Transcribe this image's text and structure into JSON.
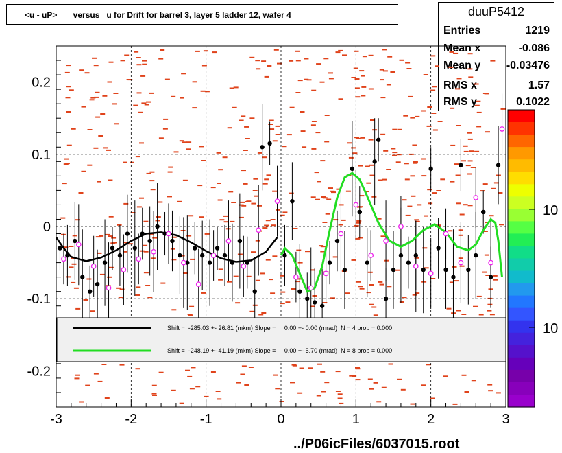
{
  "title": "<u - uP>       versus   u for Drift for barrel 3, layer 5 ladder 12, wafer 4",
  "stats": {
    "name": "duuP5412",
    "rows": [
      {
        "label": "Entries",
        "value": "1219"
      },
      {
        "label": "Mean x",
        "value": "-0.086"
      },
      {
        "label": "Mean y",
        "value": "-0.03476"
      },
      {
        "label": "RMS x",
        "value": "1.57"
      },
      {
        "label": "RMS y",
        "value": "0.1022"
      }
    ]
  },
  "legend": {
    "entries": [
      {
        "text": "Shift =  -285.03 +- 26.81 (mkm) Slope =     0.00 +- 0.00 (mrad)  N = 4 prob = 0.000",
        "color": "#000000"
      },
      {
        "text": "Shift =  -248.19 +- 41.19 (mkm) Slope =     0.00 +- 5.70 (mrad)  N = 8 prob = 0.000",
        "color": "#22dd22"
      }
    ]
  },
  "footer": "../P06icFiles/6037015.root",
  "palette_labels": [
    "10",
    "10"
  ],
  "chart_data": {
    "type": "scatter",
    "xlim": [
      -3,
      3
    ],
    "ylim": [
      -0.25,
      0.25
    ],
    "xticks": [
      "-3",
      "-2",
      "-1",
      "0",
      "1",
      "2",
      "3"
    ],
    "yticks": [
      "-0.2",
      "-0.1",
      "0",
      "0.1",
      "0.2"
    ],
    "grid": true,
    "colors": {
      "heat": "#e0431b",
      "profile": "#000000",
      "profile2": "#ee22ee",
      "fit1": "#000000",
      "fit2": "#22dd22"
    },
    "profile_black": [
      {
        "x": -2.95,
        "y": -0.03
      },
      {
        "x": -2.85,
        "y": -0.04
      },
      {
        "x": -2.75,
        "y": -0.02
      },
      {
        "x": -2.65,
        "y": -0.07
      },
      {
        "x": -2.55,
        "y": -0.09
      },
      {
        "x": -2.45,
        "y": -0.08
      },
      {
        "x": -2.35,
        "y": -0.05
      },
      {
        "x": -2.25,
        "y": -0.03
      },
      {
        "x": -2.15,
        "y": -0.04
      },
      {
        "x": -2.05,
        "y": -0.01
      },
      {
        "x": -1.95,
        "y": -0.03
      },
      {
        "x": -1.85,
        "y": -0.01
      },
      {
        "x": -1.75,
        "y": -0.02
      },
      {
        "x": -1.65,
        "y": 0.0
      },
      {
        "x": -1.55,
        "y": -0.01
      },
      {
        "x": -1.45,
        "y": -0.02
      },
      {
        "x": -1.35,
        "y": -0.04
      },
      {
        "x": -1.25,
        "y": -0.05
      },
      {
        "x": -1.15,
        "y": -0.03
      },
      {
        "x": -1.05,
        "y": -0.04
      },
      {
        "x": -0.95,
        "y": -0.05
      },
      {
        "x": -0.85,
        "y": -0.03
      },
      {
        "x": -0.75,
        "y": -0.04
      },
      {
        "x": -0.65,
        "y": -0.05
      },
      {
        "x": -0.55,
        "y": -0.02
      },
      {
        "x": -0.45,
        "y": -0.05
      },
      {
        "x": -0.35,
        "y": -0.09
      },
      {
        "x": -0.25,
        "y": 0.11
      },
      {
        "x": -0.15,
        "y": 0.115
      },
      {
        "x": 0.05,
        "y": -0.04
      },
      {
        "x": 0.15,
        "y": 0.035
      },
      {
        "x": 0.25,
        "y": -0.09
      },
      {
        "x": 0.35,
        "y": -0.1
      },
      {
        "x": 0.45,
        "y": -0.105
      },
      {
        "x": 0.55,
        "y": -0.11
      },
      {
        "x": 0.65,
        "y": -0.05
      },
      {
        "x": 0.75,
        "y": -0.02
      },
      {
        "x": 0.85,
        "y": -0.06
      },
      {
        "x": 0.95,
        "y": 0.08
      },
      {
        "x": 1.05,
        "y": 0.02
      },
      {
        "x": 1.15,
        "y": -0.05
      },
      {
        "x": 1.25,
        "y": 0.09
      },
      {
        "x": 1.3,
        "y": 0.12
      },
      {
        "x": 1.4,
        "y": -0.1
      },
      {
        "x": 1.5,
        "y": -0.06
      },
      {
        "x": 1.6,
        "y": -0.04
      },
      {
        "x": 1.7,
        "y": -0.05
      },
      {
        "x": 1.8,
        "y": -0.04
      },
      {
        "x": 1.9,
        "y": -0.06
      },
      {
        "x": 2.0,
        "y": 0.08
      },
      {
        "x": 2.1,
        "y": -0.03
      },
      {
        "x": 2.2,
        "y": -0.06
      },
      {
        "x": 2.3,
        "y": -0.07
      },
      {
        "x": 2.4,
        "y": 0.085
      },
      {
        "x": 2.5,
        "y": -0.06
      },
      {
        "x": 2.6,
        "y": -0.04
      },
      {
        "x": 2.7,
        "y": 0.02
      },
      {
        "x": 2.8,
        "y": -0.07
      },
      {
        "x": 2.9,
        "y": 0.085
      }
    ],
    "profile_magenta": [
      {
        "x": -2.9,
        "y": -0.045
      },
      {
        "x": -2.7,
        "y": -0.025
      },
      {
        "x": -2.5,
        "y": -0.055
      },
      {
        "x": -2.3,
        "y": -0.085
      },
      {
        "x": -2.1,
        "y": -0.06
      },
      {
        "x": -1.9,
        "y": -0.045
      },
      {
        "x": -1.7,
        "y": -0.035
      },
      {
        "x": -1.5,
        "y": -0.01
      },
      {
        "x": -1.3,
        "y": -0.05
      },
      {
        "x": -1.1,
        "y": -0.08
      },
      {
        "x": -0.9,
        "y": -0.04
      },
      {
        "x": -0.7,
        "y": -0.02
      },
      {
        "x": -0.5,
        "y": -0.055
      },
      {
        "x": -0.3,
        "y": -0.005
      },
      {
        "x": -0.05,
        "y": 0.035
      },
      {
        "x": 0.2,
        "y": -0.07
      },
      {
        "x": 0.4,
        "y": -0.085
      },
      {
        "x": 0.6,
        "y": -0.065
      },
      {
        "x": 0.8,
        "y": -0.01
      },
      {
        "x": 1.0,
        "y": 0.03
      },
      {
        "x": 1.2,
        "y": -0.04
      },
      {
        "x": 1.4,
        "y": -0.02
      },
      {
        "x": 1.6,
        "y": 0.0
      },
      {
        "x": 1.8,
        "y": -0.055
      },
      {
        "x": 2.0,
        "y": -0.065
      },
      {
        "x": 2.2,
        "y": -0.01
      },
      {
        "x": 2.4,
        "y": -0.05
      },
      {
        "x": 2.6,
        "y": 0.04
      },
      {
        "x": 2.8,
        "y": -0.05
      },
      {
        "x": 2.95,
        "y": 0.135
      }
    ],
    "fit_black": [
      {
        "x": -3.0,
        "y": -0.015
      },
      {
        "x": -2.9,
        "y": -0.03
      },
      {
        "x": -2.8,
        "y": -0.042
      },
      {
        "x": -2.6,
        "y": -0.048
      },
      {
        "x": -2.4,
        "y": -0.043
      },
      {
        "x": -2.2,
        "y": -0.033
      },
      {
        "x": -2.0,
        "y": -0.02
      },
      {
        "x": -1.8,
        "y": -0.01
      },
      {
        "x": -1.6,
        "y": -0.008
      },
      {
        "x": -1.4,
        "y": -0.012
      },
      {
        "x": -1.2,
        "y": -0.022
      },
      {
        "x": -1.0,
        "y": -0.034
      },
      {
        "x": -0.8,
        "y": -0.044
      },
      {
        "x": -0.6,
        "y": -0.049
      },
      {
        "x": -0.4,
        "y": -0.047
      },
      {
        "x": -0.2,
        "y": -0.035
      },
      {
        "x": -0.05,
        "y": -0.015
      }
    ],
    "fit_green": [
      {
        "x": 0.0,
        "y": -0.04
      },
      {
        "x": 0.05,
        "y": -0.03
      },
      {
        "x": 0.15,
        "y": -0.04
      },
      {
        "x": 0.25,
        "y": -0.065
      },
      {
        "x": 0.35,
        "y": -0.09
      },
      {
        "x": 0.45,
        "y": -0.085
      },
      {
        "x": 0.55,
        "y": -0.055
      },
      {
        "x": 0.65,
        "y": -0.005
      },
      {
        "x": 0.75,
        "y": 0.04
      },
      {
        "x": 0.85,
        "y": 0.068
      },
      {
        "x": 0.95,
        "y": 0.074
      },
      {
        "x": 1.05,
        "y": 0.065
      },
      {
        "x": 1.15,
        "y": 0.042
      },
      {
        "x": 1.3,
        "y": 0.005
      },
      {
        "x": 1.45,
        "y": -0.02
      },
      {
        "x": 1.6,
        "y": -0.028
      },
      {
        "x": 1.75,
        "y": -0.02
      },
      {
        "x": 1.9,
        "y": -0.005
      },
      {
        "x": 2.05,
        "y": 0.003
      },
      {
        "x": 2.2,
        "y": -0.008
      },
      {
        "x": 2.35,
        "y": -0.028
      },
      {
        "x": 2.5,
        "y": -0.033
      },
      {
        "x": 2.6,
        "y": -0.025
      },
      {
        "x": 2.7,
        "y": -0.005
      },
      {
        "x": 2.8,
        "y": 0.01
      },
      {
        "x": 2.86,
        "y": 0.005
      },
      {
        "x": 2.9,
        "y": -0.02
      },
      {
        "x": 2.95,
        "y": -0.07
      }
    ]
  }
}
